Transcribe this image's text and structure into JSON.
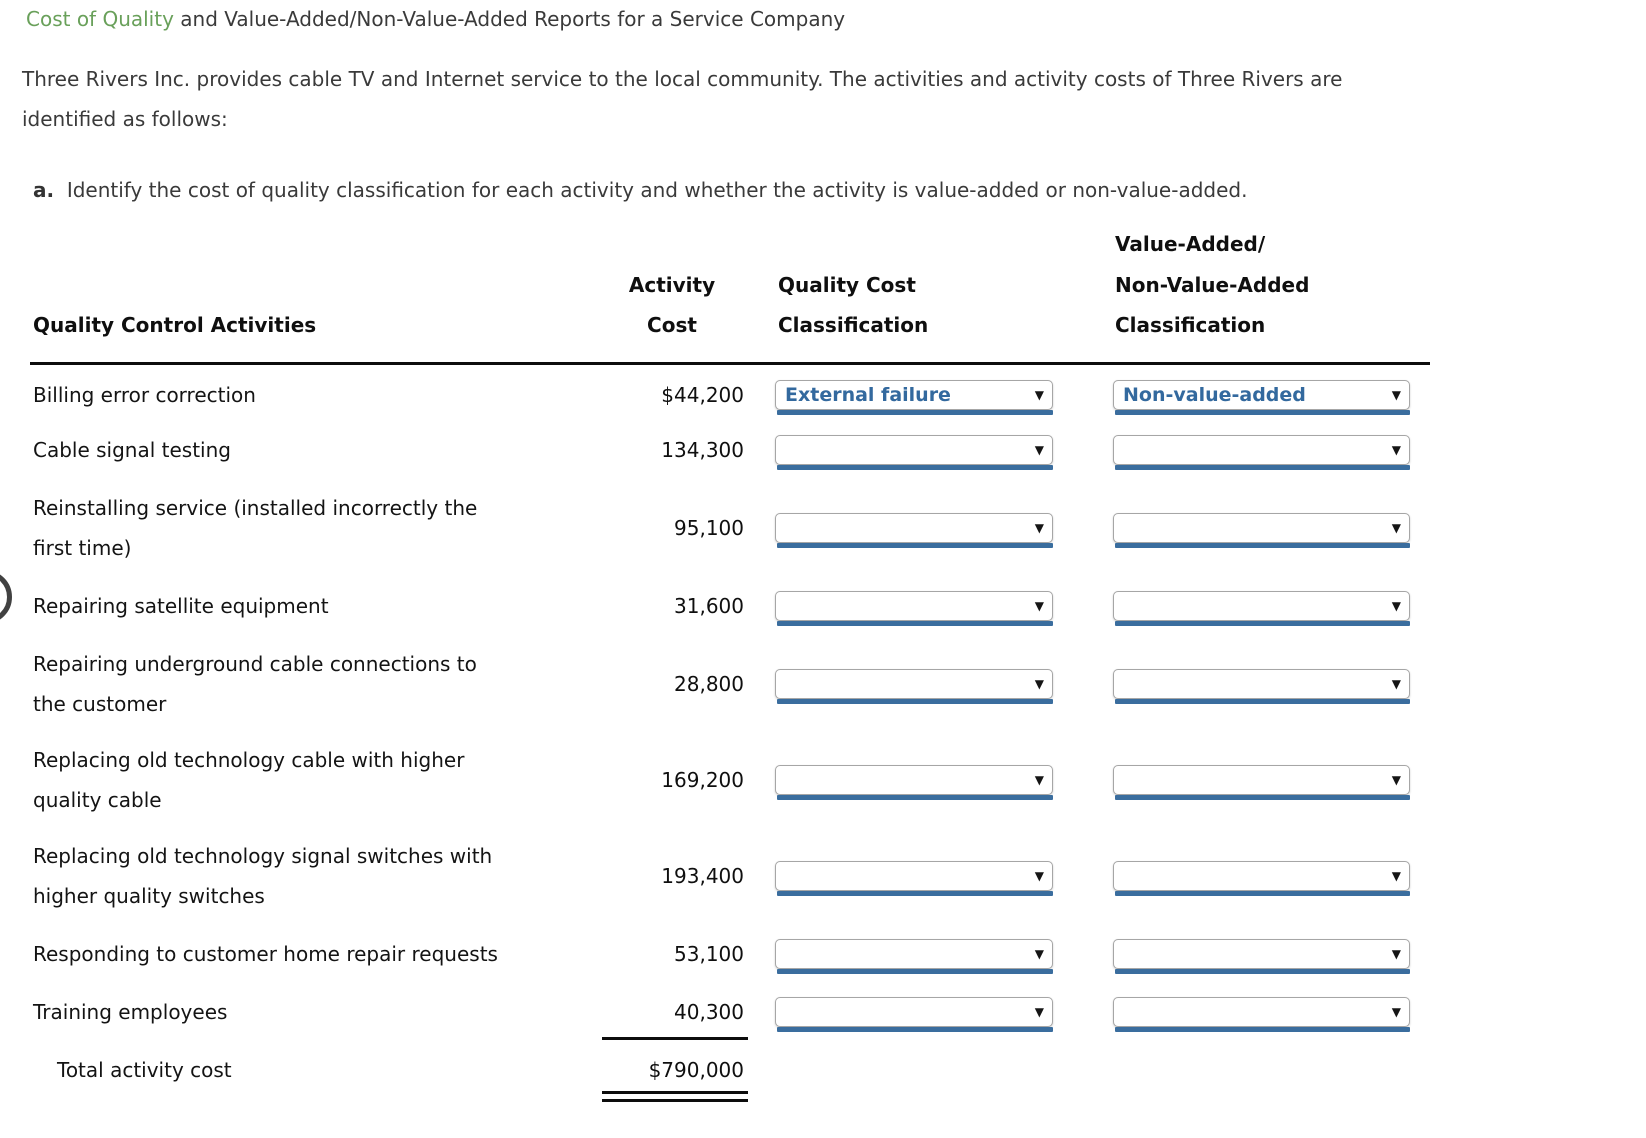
{
  "colors": {
    "accent_green": "#69a05a",
    "select_text_blue": "#33699e",
    "select_bar_blue": "#3a6d9e",
    "body_text": "#3a3a3a"
  },
  "page": {
    "title_highlight": "Cost of Quality",
    "title_rest": " and Value-Added/Non-Value-Added Reports for a Service Company",
    "intro_line1": "Three Rivers Inc. provides cable TV and Internet service to the local community. The activities and activity costs of Three Rivers are",
    "intro_line2": "identified as follows:",
    "instruction_label": "a.",
    "instruction_text": "Identify the cost of quality classification for each activity and whether the activity is value-added or non-value-added."
  },
  "table": {
    "headers": {
      "activities": "Quality Control Activities",
      "cost_line1": "Activity",
      "cost_line2": "Cost",
      "quality_line1": "Quality Cost",
      "quality_line2": "Classification",
      "va_line1": "Value-Added/",
      "va_line2": "Non-Value-Added",
      "va_line3": "Classification"
    },
    "rows": [
      {
        "activity_lines": [
          "Billing error correction"
        ],
        "cost": "$44,200",
        "quality_classification": "External failure",
        "va_classification": "Non-value-added"
      },
      {
        "activity_lines": [
          "Cable signal testing"
        ],
        "cost": "134,300",
        "quality_classification": "",
        "va_classification": ""
      },
      {
        "activity_lines": [
          "Reinstalling service (installed incorrectly the",
          "first time)"
        ],
        "cost": "95,100",
        "quality_classification": "",
        "va_classification": ""
      },
      {
        "activity_lines": [
          "Repairing satellite equipment"
        ],
        "cost": "31,600",
        "quality_classification": "",
        "va_classification": ""
      },
      {
        "activity_lines": [
          "Repairing underground cable connections to",
          "the customer"
        ],
        "cost": "28,800",
        "quality_classification": "",
        "va_classification": ""
      },
      {
        "activity_lines": [
          "Replacing old technology cable with higher",
          "quality cable"
        ],
        "cost": "169,200",
        "quality_classification": "",
        "va_classification": ""
      },
      {
        "activity_lines": [
          "Replacing old technology signal switches with",
          "higher quality switches"
        ],
        "cost": "193,400",
        "quality_classification": "",
        "va_classification": ""
      },
      {
        "activity_lines": [
          "Responding to customer home repair requests"
        ],
        "cost": "53,100",
        "quality_classification": "",
        "va_classification": ""
      },
      {
        "activity_lines": [
          "Training employees"
        ],
        "cost": "40,300",
        "quality_classification": "",
        "va_classification": ""
      }
    ],
    "total": {
      "label": "Total activity cost",
      "value": "$790,000"
    }
  }
}
